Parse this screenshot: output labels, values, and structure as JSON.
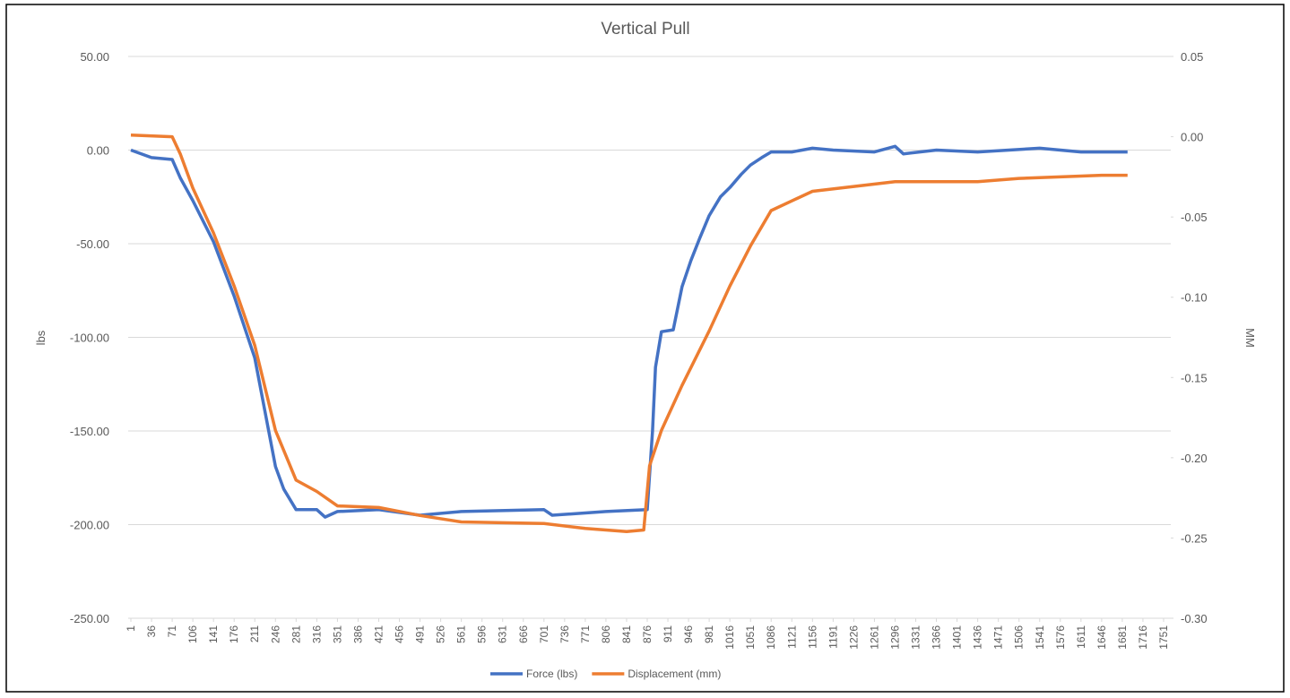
{
  "chart_data": {
    "type": "line",
    "title": "Vertical Pull",
    "y_label": "lbs",
    "y2_label": "MM",
    "xlim": [
      1,
      1751
    ],
    "xticks": [
      1,
      36,
      71,
      106,
      141,
      176,
      211,
      246,
      281,
      316,
      351,
      386,
      421,
      456,
      491,
      526,
      561,
      596,
      631,
      666,
      701,
      736,
      771,
      806,
      841,
      876,
      911,
      946,
      981,
      1016,
      1051,
      1086,
      1121,
      1156,
      1191,
      1226,
      1261,
      1296,
      1331,
      1366,
      1401,
      1436,
      1471,
      1506,
      1541,
      1576,
      1611,
      1646,
      1681,
      1716,
      1751
    ],
    "ylim": [
      -250,
      50
    ],
    "yticks": [
      {
        "value": -250,
        "label": "-250.00"
      },
      {
        "value": -200,
        "label": "-200.00"
      },
      {
        "value": -150,
        "label": "-150.00"
      },
      {
        "value": -100,
        "label": "-100.00"
      },
      {
        "value": -50,
        "label": "-50.00"
      },
      {
        "value": 0,
        "label": "0.00"
      },
      {
        "value": 50,
        "label": "50.00"
      }
    ],
    "y2lim": [
      -0.3,
      0.05
    ],
    "y2ticks": [
      {
        "value": -0.3,
        "label": "-0.30"
      },
      -0.25,
      {
        "value": -0.2,
        "label": "-0.20"
      },
      -0.15,
      {
        "value": -0.1,
        "label": "-0.10"
      },
      -0.05,
      {
        "value": 0,
        "label": "0.00"
      },
      0.05
    ],
    "grid": true,
    "legend": "bottom",
    "series": [
      {
        "name": "Force (lbs)",
        "color": "#4472c4",
        "x": [
          1,
          36,
          71,
          85,
          106,
          141,
          176,
          211,
          246,
          260,
          281,
          316,
          330,
          351,
          421,
          491,
          561,
          701,
          715,
          806,
          876,
          885,
          890,
          900,
          920,
          935,
          950,
          965,
          981,
          1000,
          1016,
          1035,
          1051,
          1070,
          1086,
          1121,
          1156,
          1191,
          1261,
          1296,
          1310,
          1366,
          1436,
          1541,
          1611,
          1690
        ],
        "values": [
          0,
          -4,
          -5,
          -15,
          -27,
          -49,
          -78,
          -111,
          -169,
          -181,
          -192,
          -192,
          -196,
          -193,
          -192,
          -195,
          -193,
          -192,
          -195,
          -193,
          -192,
          -150,
          -116,
          -97,
          -96,
          -73,
          -59,
          -47,
          -35,
          -25,
          -20,
          -13,
          -8,
          -4,
          -1,
          -1,
          1,
          0,
          -1,
          2,
          -2,
          0,
          -1,
          1,
          -1,
          -1
        ]
      },
      {
        "name": "Displacement (mm)",
        "color": "#ed7d31",
        "axis": "y2",
        "x": [
          1,
          71,
          85,
          106,
          141,
          176,
          211,
          246,
          281,
          316,
          351,
          421,
          491,
          561,
          701,
          771,
          841,
          870,
          880,
          900,
          935,
          981,
          1016,
          1051,
          1086,
          1121,
          1156,
          1226,
          1296,
          1366,
          1436,
          1506,
          1576,
          1646,
          1690
        ],
        "values": [
          0.001,
          0,
          -0.011,
          -0.032,
          -0.06,
          -0.093,
          -0.13,
          -0.183,
          -0.214,
          -0.221,
          -0.23,
          -0.231,
          -0.236,
          -0.24,
          -0.241,
          -0.244,
          -0.246,
          -0.245,
          -0.205,
          -0.183,
          -0.155,
          -0.121,
          -0.093,
          -0.068,
          -0.046,
          -0.04,
          -0.034,
          -0.031,
          -0.028,
          -0.028,
          -0.028,
          -0.026,
          -0.025,
          -0.024,
          -0.024
        ]
      }
    ]
  }
}
